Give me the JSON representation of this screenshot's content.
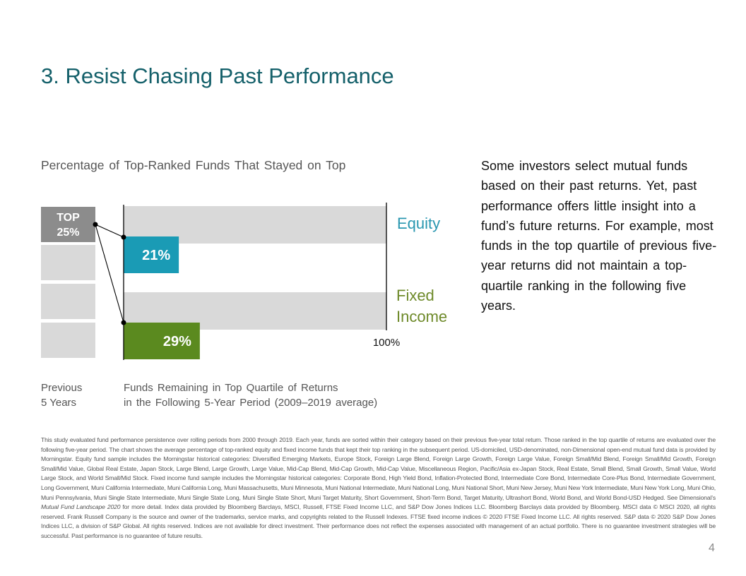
{
  "page": {
    "title": "3. Resist Chasing Past Performance",
    "page_number": "4"
  },
  "sidebar_text": "Some investors select mutual funds based on their past returns. Yet, past performance offers little insight into a fund’s future returns. For example, most funds in the top quartile of previous five-year returns did not maintain a top-quartile ranking in the following five years.",
  "footnote": {
    "part1": "This study evaluated fund performance persistence over rolling periods from 2000 through 2019. Each year, funds are sorted within their category based on their previous five-year total return. Those ranked in the top quartile of returns are evaluated over the following five-year period. The chart shows the average percentage of top-ranked equity and fixed income funds that kept their top ranking in the subsequent period. US-domiciled, USD-denominated, non-Dimensional open-end mutual fund data is provided by Morningstar. Equity fund sample includes the Morningstar historical categories: Diversified Emerging Markets, Europe Stock, Foreign Large Blend, Foreign Large Growth, Foreign Large Value, Foreign Small/Mid Blend, Foreign Small/Mid Growth, Foreign Small/Mid Value, Global Real Estate, Japan Stock, Large Blend, Large Growth, Large Value, Mid-Cap Blend, Mid-Cap Growth, Mid-Cap Value, Miscellaneous Region, Pacific/Asia ex-Japan Stock, Real Estate, Small Blend, Small Growth, Small Value, World Large Stock, and World Small/Mid Stock. Fixed income fund sample includes the Morningstar historical categories: Corporate Bond, High Yield Bond, Inflation-Protected Bond, Intermediate Core Bond, Intermediate Core-Plus Bond, Intermediate Government, Long Government, Muni California Intermediate, Muni California Long, Muni Massachusetts, Muni Minnesota, Muni National Intermediate, Muni National Long, Muni National Short, Muni New Jersey, Muni New York Intermediate, Muni New York Long, Muni Ohio, Muni Pennsylvania, Muni Single State Intermediate, Muni Single State Long, Muni Single State Short, Muni Target Maturity, Short Government, Short-Term Bond, Target Maturity, Ultrashort Bond, World Bond, and World Bond-USD Hedged. See Dimensional’s ",
    "italic": "Mutual Fund Landscape 2020",
    "part2": " for more detail. Index data provided by Bloomberg Barclays, MSCI, Russell, FTSE Fixed Income LLC, and S&P Dow Jones Indices LLC. Bloomberg Barclays data provided by Bloomberg. MSCI data © MSCI 2020, all rights reserved. Frank Russell Company is the source and owner of the trademarks, service marks, and copyrights related to the Russell Indexes. FTSE fixed income indices © 2020 FTSE Fixed Income LLC. All rights reserved. S&P data © 2020 S&P Dow Jones Indices LLC, a division of S&P Global. All rights reserved. Indices are not available for direct investment. Their performance does not reflect the expenses associated with management of an actual portfolio. There is no guarantee investment strategies will be successful. Past performance is no guarantee of future results."
  },
  "colors": {
    "title": "#14606a",
    "equity": "#1a9bb5",
    "fixed_income": "#5b8a1f",
    "equity_label": "#2a97b0",
    "fixed_income_label": "#6e8a2a",
    "top_box": "#8c8c8c",
    "track": "#d9d9d9"
  },
  "chart_data": {
    "type": "bar",
    "orientation": "horizontal",
    "title": "Percentage of Top-Ranked Funds That Stayed on Top",
    "categories": [
      "Equity",
      "Fixed Income"
    ],
    "values": [
      21,
      29
    ],
    "value_labels": [
      "21%",
      "29%"
    ],
    "value_unit": "%",
    "xlim": [
      0,
      100
    ],
    "max_tick_label": "100%",
    "quartile_boxes": {
      "highlighted_label_line1": "TOP",
      "highlighted_label_line2": "25%",
      "count": 4,
      "highlighted_value": 25
    },
    "xlabel_left_line1": "Previous",
    "xlabel_left_line2": "5 Years",
    "xlabel_line1": "Funds Remaining in Top Quartile of Returns",
    "xlabel_line2": "in the Following 5-Year Period (2009–2019 average)",
    "grid": false,
    "legend": "none"
  }
}
